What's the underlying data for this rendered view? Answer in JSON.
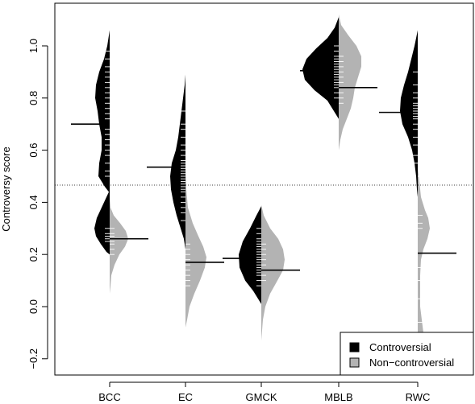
{
  "chart_data": {
    "type": "beanplot",
    "ylabel": "Controversy score",
    "ylim": [
      -0.26,
      1.12
    ],
    "yticks": [
      -0.2,
      0.0,
      0.2,
      0.4,
      0.6,
      0.8,
      1.0
    ],
    "ytick_labels": [
      "−0.2",
      "0.0",
      "0.2",
      "0.4",
      "0.6",
      "0.8",
      "1.0"
    ],
    "categories": [
      "BCC",
      "EC",
      "GMCK",
      "MBLB",
      "RWC"
    ],
    "reference_line": 0.466,
    "legend_position": "bottom-right",
    "series": [
      {
        "name": "Controversial",
        "color": "#000000",
        "side": "left",
        "means": [
          0.7,
          0.535,
          0.185,
          0.905,
          0.745
        ],
        "density": [
          [
            [
              1.06,
              0
            ],
            [
              1.0,
              3
            ],
            [
              0.95,
              7
            ],
            [
              0.9,
              13
            ],
            [
              0.85,
              17
            ],
            [
              0.8,
              18
            ],
            [
              0.75,
              15
            ],
            [
              0.7,
              13
            ],
            [
              0.65,
              10
            ],
            [
              0.6,
              10
            ],
            [
              0.55,
              13
            ],
            [
              0.5,
              14
            ],
            [
              0.46,
              6
            ],
            [
              0.44,
              1
            ],
            [
              0.42,
              4
            ],
            [
              0.38,
              10
            ],
            [
              0.34,
              16
            ],
            [
              0.3,
              19
            ],
            [
              0.27,
              17
            ],
            [
              0.24,
              11
            ],
            [
              0.21,
              4
            ],
            [
              0.2,
              0
            ]
          ],
          [
            [
              0.89,
              0
            ],
            [
              0.85,
              1
            ],
            [
              0.8,
              3
            ],
            [
              0.75,
              5
            ],
            [
              0.7,
              7
            ],
            [
              0.65,
              9
            ],
            [
              0.6,
              12
            ],
            [
              0.55,
              17
            ],
            [
              0.5,
              19
            ],
            [
              0.45,
              18
            ],
            [
              0.4,
              15
            ],
            [
              0.35,
              11
            ],
            [
              0.3,
              6
            ],
            [
              0.26,
              2
            ],
            [
              0.22,
              0
            ]
          ],
          [
            [
              0.385,
              0
            ],
            [
              0.35,
              6
            ],
            [
              0.3,
              14
            ],
            [
              0.25,
              23
            ],
            [
              0.2,
              28
            ],
            [
              0.15,
              27
            ],
            [
              0.1,
              20
            ],
            [
              0.06,
              10
            ],
            [
              0.03,
              4
            ],
            [
              0.01,
              0
            ]
          ],
          [
            [
              1.11,
              0
            ],
            [
              1.07,
              5
            ],
            [
              1.03,
              14
            ],
            [
              0.99,
              28
            ],
            [
              0.95,
              40
            ],
            [
              0.91,
              45
            ],
            [
              0.87,
              42
            ],
            [
              0.83,
              30
            ],
            [
              0.79,
              14
            ],
            [
              0.75,
              6
            ],
            [
              0.72,
              0
            ]
          ],
          [
            [
              1.06,
              0
            ],
            [
              1.0,
              4
            ],
            [
              0.95,
              8
            ],
            [
              0.9,
              12
            ],
            [
              0.85,
              17
            ],
            [
              0.8,
              21
            ],
            [
              0.75,
              22
            ],
            [
              0.7,
              19
            ],
            [
              0.65,
              12
            ],
            [
              0.6,
              7
            ],
            [
              0.55,
              4
            ],
            [
              0.5,
              2
            ],
            [
              0.45,
              1
            ],
            [
              0.42,
              0
            ]
          ]
        ],
        "ticks": [
          [
            0.98,
            0.95,
            0.92,
            0.9,
            0.88,
            0.86,
            0.84,
            0.82,
            0.8,
            0.78,
            0.76,
            0.74,
            0.72,
            0.7,
            0.68,
            0.66,
            0.64,
            0.62,
            0.6,
            0.58,
            0.55,
            0.52,
            0.5,
            0.3,
            0.28,
            0.27,
            0.26,
            0.25
          ],
          [
            0.75,
            0.7,
            0.68,
            0.65,
            0.62,
            0.6,
            0.58,
            0.56,
            0.55,
            0.54,
            0.53,
            0.52,
            0.51,
            0.5,
            0.49,
            0.48,
            0.47,
            0.46,
            0.45,
            0.44,
            0.42,
            0.4,
            0.38,
            0.36,
            0.33
          ],
          [
            0.3,
            0.28,
            0.26,
            0.25,
            0.24,
            0.23,
            0.22,
            0.21,
            0.2,
            0.19,
            0.18,
            0.17,
            0.16,
            0.15,
            0.14,
            0.13,
            0.12,
            0.1,
            0.08
          ],
          [
            1.0,
            0.98,
            0.96,
            0.95,
            0.94,
            0.93,
            0.92,
            0.91,
            0.9,
            0.89,
            0.88,
            0.87,
            0.86,
            0.85,
            0.84,
            0.82,
            0.8
          ],
          [
            0.9,
            0.85,
            0.82,
            0.8,
            0.78,
            0.77,
            0.76,
            0.75,
            0.74,
            0.73,
            0.72,
            0.7,
            0.68,
            0.65,
            0.62,
            0.58,
            0.55
          ]
        ]
      },
      {
        "name": "Non−controversial",
        "color": "#b3b3b3",
        "side": "right",
        "means": [
          0.26,
          0.17,
          0.14,
          0.84,
          0.205
        ],
        "density": [
          [
            [
              0.42,
              0
            ],
            [
              0.38,
              1
            ],
            [
              0.35,
              5
            ],
            [
              0.32,
              13
            ],
            [
              0.29,
              20
            ],
            [
              0.26,
              23
            ],
            [
              0.23,
              19
            ],
            [
              0.2,
              12
            ],
            [
              0.16,
              6
            ],
            [
              0.12,
              2
            ],
            [
              0.08,
              1
            ],
            [
              0.05,
              0
            ]
          ],
          [
            [
              0.53,
              0
            ],
            [
              0.45,
              1
            ],
            [
              0.38,
              3
            ],
            [
              0.32,
              9
            ],
            [
              0.27,
              16
            ],
            [
              0.23,
              22
            ],
            [
              0.19,
              26
            ],
            [
              0.15,
              24
            ],
            [
              0.1,
              18
            ],
            [
              0.05,
              11
            ],
            [
              0.0,
              5
            ],
            [
              -0.05,
              2
            ],
            [
              -0.08,
              0
            ]
          ],
          [
            [
              0.39,
              0
            ],
            [
              0.35,
              3
            ],
            [
              0.3,
              11
            ],
            [
              0.26,
              21
            ],
            [
              0.22,
              27
            ],
            [
              0.18,
              29
            ],
            [
              0.14,
              27
            ],
            [
              0.1,
              20
            ],
            [
              0.05,
              11
            ],
            [
              0.0,
              5
            ],
            [
              -0.05,
              2
            ],
            [
              -0.13,
              0
            ]
          ],
          [
            [
              1.12,
              0
            ],
            [
              1.08,
              3
            ],
            [
              1.04,
              12
            ],
            [
              1.0,
              22
            ],
            [
              0.96,
              28
            ],
            [
              0.92,
              28
            ],
            [
              0.88,
              24
            ],
            [
              0.84,
              20
            ],
            [
              0.8,
              18
            ],
            [
              0.76,
              15
            ],
            [
              0.72,
              10
            ],
            [
              0.68,
              5
            ],
            [
              0.64,
              2
            ],
            [
              0.6,
              0
            ]
          ],
          [
            [
              0.53,
              0
            ],
            [
              0.48,
              2
            ],
            [
              0.42,
              4
            ],
            [
              0.37,
              9
            ],
            [
              0.34,
              13
            ],
            [
              0.3,
              15
            ],
            [
              0.26,
              12
            ],
            [
              0.22,
              7
            ],
            [
              0.18,
              4
            ],
            [
              0.12,
              3
            ],
            [
              0.06,
              3
            ],
            [
              0.0,
              3
            ],
            [
              -0.05,
              5
            ],
            [
              -0.1,
              7
            ],
            [
              -0.14,
              6
            ],
            [
              -0.18,
              3
            ],
            [
              -0.21,
              1
            ],
            [
              -0.23,
              0
            ]
          ]
        ],
        "ticks": [
          [
            0.3,
            0.28,
            0.27,
            0.26,
            0.25,
            0.24,
            0.22,
            0.2
          ],
          [
            0.24,
            0.22,
            0.2,
            0.18,
            0.16,
            0.14,
            0.12,
            0.1,
            0.08
          ],
          [
            0.24,
            0.22,
            0.2,
            0.18,
            0.16,
            0.14,
            0.12,
            0.1
          ],
          [
            0.96,
            0.94,
            0.92,
            0.9,
            0.88,
            0.86,
            0.84,
            0.82,
            0.8,
            0.78
          ],
          [
            0.5,
            0.35,
            0.32,
            0.3,
            0.15,
            0.1,
            0.03,
            -0.06
          ]
        ]
      }
    ]
  },
  "legend": {
    "items": [
      {
        "label": "Controversial",
        "color": "#000000"
      },
      {
        "label": "Non−controversial",
        "color": "#b3b3b3"
      }
    ]
  }
}
